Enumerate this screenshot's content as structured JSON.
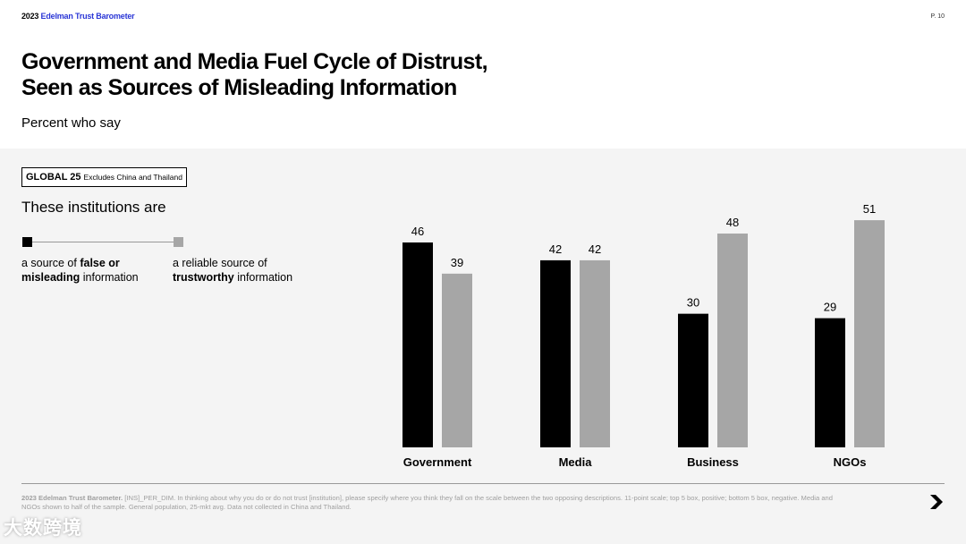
{
  "header": {
    "brand_year": "2023",
    "brand_name": "Edelman Trust Barometer",
    "page_number": "P. 10"
  },
  "title_lines": [
    "Government and Media Fuel Cycle of Distrust,",
    "Seen as Sources of Misleading Information"
  ],
  "subtitle": "Percent who say",
  "badge": {
    "label": "GLOBAL 25",
    "note": "Excludes China and Thailand"
  },
  "section_heading": "These institutions are",
  "legend": [
    {
      "pre": "a source of ",
      "bold": "false or misleading",
      "post": " information",
      "color": "#000000"
    },
    {
      "pre": "a reliable source of ",
      "bold": "trustworthy",
      "post": " information",
      "color": "#a6a6a6"
    }
  ],
  "chart_data": {
    "type": "bar",
    "categories": [
      "Government",
      "Media",
      "Business",
      "NGOs"
    ],
    "series": [
      {
        "name": "a source of false or misleading information",
        "color": "#000000",
        "values": [
          46,
          42,
          30,
          29
        ]
      },
      {
        "name": "a reliable source of trustworthy information",
        "color": "#a6a6a6",
        "values": [
          39,
          42,
          48,
          51
        ]
      }
    ],
    "ylim": [
      0,
      60
    ],
    "title": "",
    "xlabel": "",
    "ylabel": ""
  },
  "footnote": {
    "source": "2023 Edelman Trust Barometer.",
    "text": " [INS]_PER_DIM. In thinking about why you do or do not trust [institution], please specify where you think they fall on the scale between the two opposing descriptions. 11-point scale; top 5 box, positive; bottom 5 box, negative. Media and NGOs shown to half of the sample. General population, 25-mkt avg. Data not collected in China and Thailand."
  },
  "watermark": "大数跨境",
  "icons": {
    "next": "arrow-down-right-icon"
  }
}
